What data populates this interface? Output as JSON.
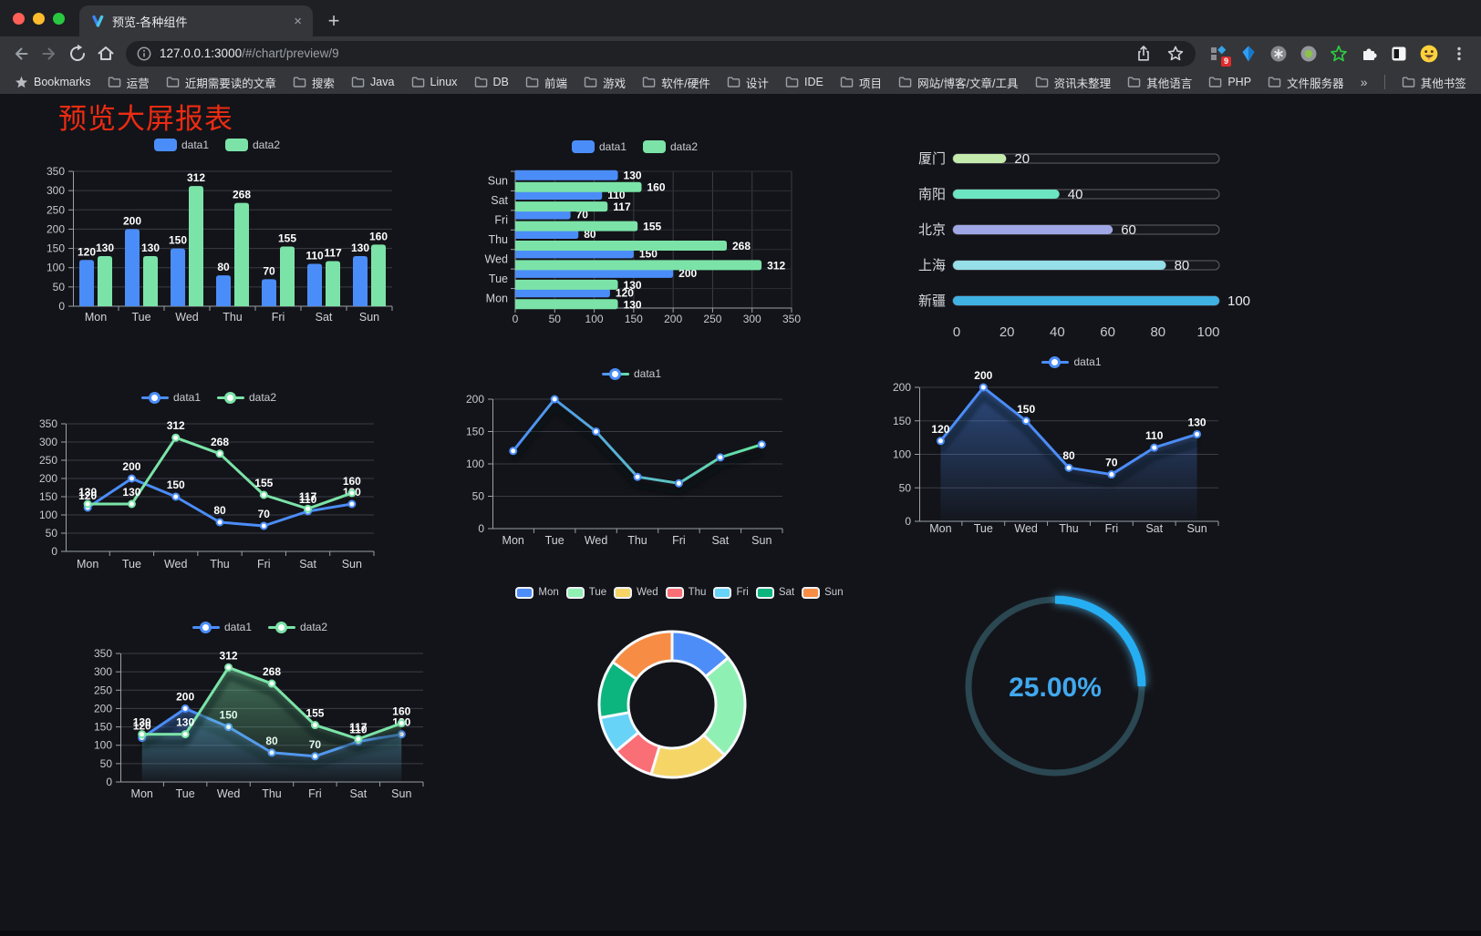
{
  "browser": {
    "tab_title": "预览-各种组件",
    "new_tab": "+",
    "url_host": "127.0.0.1:3000",
    "url_path": "/#/chart/preview/9",
    "extension_badge": "9"
  },
  "bookmarks": {
    "root": "Bookmarks",
    "folders": [
      "运营",
      "近期需要读的文章",
      "搜索",
      "Java",
      "Linux",
      "DB",
      "前端",
      "游戏",
      "软件/硬件",
      "设计",
      "IDE",
      "项目",
      "网站/博客/文章/工具",
      "资讯未整理",
      "其他语言",
      "PHP",
      "文件服务器"
    ],
    "overflow": "»",
    "other": "其他书签"
  },
  "page": {
    "title": "预览大屏报表",
    "title_color": "#ED2B12"
  },
  "chart_data": [
    {
      "id": "bar-vertical",
      "type": "bar",
      "categories": [
        "Mon",
        "Tue",
        "Wed",
        "Thu",
        "Fri",
        "Sat",
        "Sun"
      ],
      "series": [
        {
          "name": "data1",
          "color": "#4B8DF8",
          "values": [
            120,
            200,
            150,
            80,
            70,
            110,
            130
          ]
        },
        {
          "name": "data2",
          "color": "#7BE3A8",
          "values": [
            130,
            130,
            312,
            268,
            155,
            117,
            160
          ]
        }
      ],
      "ylim": [
        0,
        350
      ],
      "yticks": [
        0,
        50,
        100,
        150,
        200,
        250,
        300,
        350
      ],
      "legend_position": "top",
      "grid": true,
      "show_labels": true
    },
    {
      "id": "bar-horizontal",
      "type": "hbar",
      "categories": [
        "Mon",
        "Tue",
        "Wed",
        "Thu",
        "Fri",
        "Sat",
        "Sun"
      ],
      "display_order": "bottom-to-top",
      "series": [
        {
          "name": "data1",
          "color": "#4B8DF8",
          "values": [
            120,
            200,
            150,
            80,
            70,
            110,
            130
          ]
        },
        {
          "name": "data2",
          "color": "#7BE3A8",
          "values": [
            130,
            130,
            312,
            268,
            155,
            117,
            160
          ]
        }
      ],
      "xlim": [
        0,
        350
      ],
      "xticks": [
        0,
        50,
        100,
        150,
        200,
        250,
        300,
        350
      ],
      "legend_position": "top",
      "grid": true,
      "show_labels": true
    },
    {
      "id": "progress",
      "type": "progress",
      "max": 100,
      "ticks": [
        0,
        20,
        40,
        60,
        80,
        100
      ],
      "items": [
        {
          "label": "厦门",
          "value": 20,
          "color": "#C4EBAD"
        },
        {
          "label": "南阳",
          "value": 40,
          "color": "#6BE6C1"
        },
        {
          "label": "北京",
          "value": 60,
          "color": "#A0A7E6"
        },
        {
          "label": "上海",
          "value": 80,
          "color": "#96DEE8"
        },
        {
          "label": "新疆",
          "value": 100,
          "color": "#3FB1E3"
        }
      ]
    },
    {
      "id": "line-dual",
      "type": "line",
      "categories": [
        "Mon",
        "Tue",
        "Wed",
        "Thu",
        "Fri",
        "Sat",
        "Sun"
      ],
      "series": [
        {
          "name": "data1",
          "color": "#4B8DF8",
          "values": [
            120,
            200,
            150,
            80,
            70,
            110,
            130
          ]
        },
        {
          "name": "data2",
          "color": "#7BE3A8",
          "values": [
            130,
            130,
            312,
            268,
            155,
            117,
            160
          ]
        }
      ],
      "ylim": [
        0,
        350
      ],
      "yticks": [
        0,
        50,
        100,
        150,
        200,
        250,
        300,
        350
      ],
      "legend_position": "top",
      "show_labels": true
    },
    {
      "id": "line-gradient",
      "type": "line",
      "categories": [
        "Mon",
        "Tue",
        "Wed",
        "Thu",
        "Fri",
        "Sat",
        "Sun"
      ],
      "series": [
        {
          "name": "data1",
          "color": "#4B8DF8",
          "color_end": "#66E6A2",
          "shadow": true,
          "values": [
            120,
            200,
            150,
            80,
            70,
            110,
            130
          ]
        }
      ],
      "ylim": [
        0,
        200
      ],
      "yticks": [
        0,
        50,
        100,
        150,
        200
      ],
      "legend_position": "top"
    },
    {
      "id": "line-area",
      "type": "line",
      "categories": [
        "Mon",
        "Tue",
        "Wed",
        "Thu",
        "Fri",
        "Sat",
        "Sun"
      ],
      "series": [
        {
          "name": "data1",
          "color": "#4B8DF8",
          "area": true,
          "shadow": true,
          "values": [
            120,
            200,
            150,
            80,
            70,
            110,
            130
          ]
        }
      ],
      "ylim": [
        0,
        200
      ],
      "yticks": [
        0,
        50,
        100,
        150,
        200
      ],
      "legend_position": "top",
      "show_labels": true
    },
    {
      "id": "line-dual-area",
      "type": "line",
      "categories": [
        "Mon",
        "Tue",
        "Wed",
        "Thu",
        "Fri",
        "Sat",
        "Sun"
      ],
      "series": [
        {
          "name": "data1",
          "color": "#4B8DF8",
          "area": true,
          "shadow": true,
          "values": [
            120,
            200,
            150,
            80,
            70,
            110,
            130
          ]
        },
        {
          "name": "data2",
          "color": "#7BE3A8",
          "area": true,
          "shadow": true,
          "values": [
            130,
            130,
            312,
            268,
            155,
            117,
            160
          ]
        }
      ],
      "ylim": [
        0,
        350
      ],
      "yticks": [
        0,
        50,
        100,
        150,
        200,
        250,
        300,
        350
      ],
      "legend_position": "top",
      "show_labels": true
    },
    {
      "id": "donut",
      "type": "pie",
      "inner_radius_ratio": 0.6,
      "border_color": "#F7F9FB",
      "legend_position": "top",
      "items": [
        {
          "name": "Mon",
          "value": 120,
          "color": "#4D8DF7"
        },
        {
          "name": "Tue",
          "value": 200,
          "color": "#8FF0B4"
        },
        {
          "name": "Wed",
          "value": 150,
          "color": "#F6D567"
        },
        {
          "name": "Thu",
          "value": 80,
          "color": "#FA6E76"
        },
        {
          "name": "Fri",
          "value": 70,
          "color": "#67D3F7"
        },
        {
          "name": "Sat",
          "value": 110,
          "color": "#0CB57E"
        },
        {
          "name": "Sun",
          "value": 130,
          "color": "#F78D45"
        }
      ]
    },
    {
      "id": "gauge",
      "type": "gauge",
      "value": 25,
      "label": "25.00%",
      "color": "#28AEF3",
      "track_color": "#2A4752",
      "text_color": "#41A8EF"
    }
  ]
}
